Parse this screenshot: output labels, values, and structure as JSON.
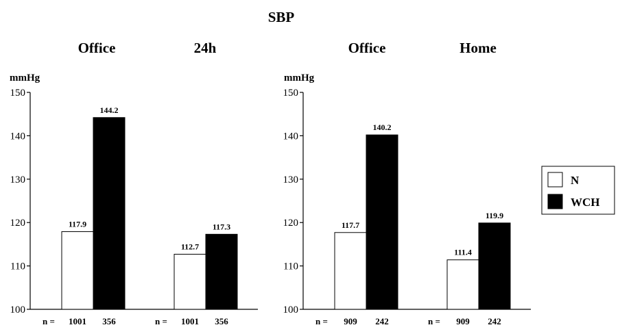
{
  "title": "SBP",
  "legend": {
    "items": [
      {
        "label": "N",
        "color": "#ffffff"
      },
      {
        "label": "WCH",
        "color": "#000000"
      }
    ]
  },
  "chart_data": [
    {
      "type": "bar",
      "unit": "mmHg",
      "ylim": [
        100,
        150
      ],
      "yticks": [
        100,
        110,
        120,
        130,
        140,
        150
      ],
      "series_names": [
        "N",
        "WCH"
      ],
      "colors": [
        "#ffffff",
        "#000000"
      ],
      "n_prefix": "n =",
      "groups": [
        {
          "title": "Office",
          "values": [
            117.9,
            144.2
          ],
          "labels": [
            "117.9",
            "144.2"
          ],
          "n": [
            "1001",
            "356"
          ]
        },
        {
          "title": "24h",
          "values": [
            112.7,
            117.3
          ],
          "labels": [
            "112.7",
            "117.3"
          ],
          "n": [
            "1001",
            "356"
          ]
        }
      ]
    },
    {
      "type": "bar",
      "unit": "mmHg",
      "ylim": [
        100,
        150
      ],
      "yticks": [
        100,
        110,
        120,
        130,
        140,
        150
      ],
      "series_names": [
        "N",
        "WCH"
      ],
      "colors": [
        "#ffffff",
        "#000000"
      ],
      "n_prefix": "n =",
      "groups": [
        {
          "title": "Office",
          "values": [
            117.7,
            140.2
          ],
          "labels": [
            "117.7",
            "140.2"
          ],
          "n": [
            "909",
            "242"
          ]
        },
        {
          "title": "Home",
          "values": [
            111.4,
            119.9
          ],
          "labels": [
            "111.4",
            "119.9"
          ],
          "n": [
            "909",
            "242"
          ]
        }
      ]
    }
  ]
}
